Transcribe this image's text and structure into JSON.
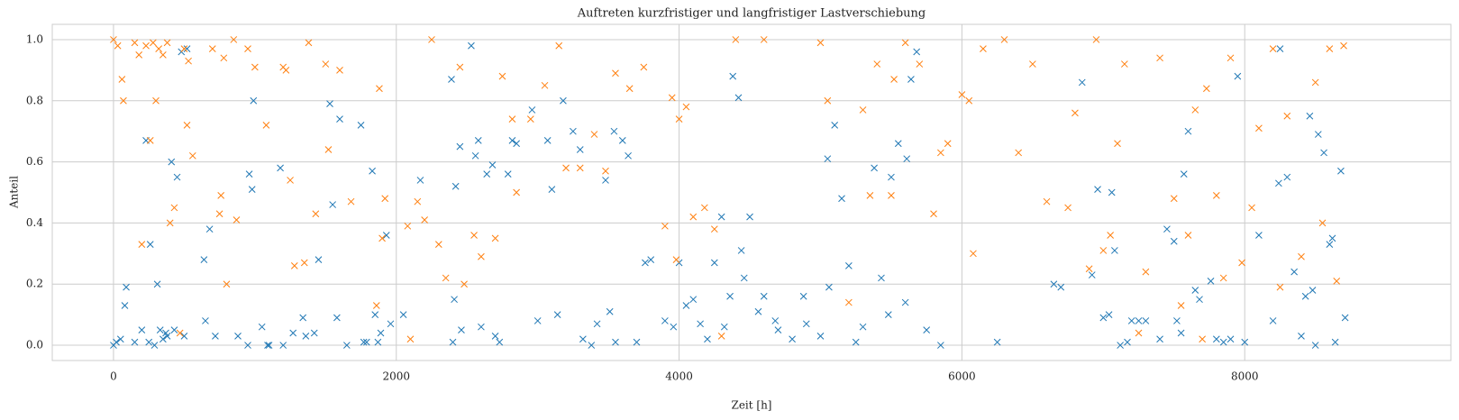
{
  "chart_data": {
    "type": "scatter",
    "title": "Auftreten kurzfristiger und langfristiger Lastverschiebung",
    "x_label": "Zeit [h]",
    "y_label": "Anteil",
    "xlim": [
      -433,
      9458
    ],
    "ylim": [
      -0.05,
      1.05
    ],
    "xticks": [
      0,
      2000,
      4000,
      6000,
      8000
    ],
    "yticks": [
      {
        "value": 0,
        "label": "0.0"
      },
      0.2,
      0.4,
      0.6,
      0.8,
      {
        "value": 1,
        "label": "1.0"
      }
    ],
    "grid": true,
    "marker": "x",
    "series": [
      {
        "color": "#1f77b4",
        "x": [
          0,
          20,
          50,
          80,
          90,
          150,
          200,
          230,
          250,
          260,
          290,
          310,
          330,
          350,
          370,
          380,
          410,
          430,
          450,
          480,
          500,
          520,
          640,
          650,
          680,
          720,
          880,
          950,
          960,
          980,
          990,
          1050,
          1090,
          1100,
          1180,
          1200,
          1270,
          1340,
          1360,
          1420,
          1450,
          1530,
          1550,
          1580,
          1600,
          1650,
          1750,
          1770,
          1790,
          1830,
          1850,
          1870,
          1890,
          1930,
          1960,
          2050,
          2170,
          2390,
          2400,
          2410,
          2420,
          2450,
          2460,
          2530,
          2560,
          2580,
          2600,
          2640,
          2680,
          2700,
          2730,
          2790,
          2820,
          2850,
          2960,
          3000,
          3070,
          3100,
          3140,
          3180,
          3250,
          3300,
          3320,
          3380,
          3420,
          3480,
          3510,
          3540,
          3550,
          3600,
          3640,
          3700,
          3760,
          3800,
          3900,
          3960,
          4000,
          4050,
          4100,
          4150,
          4200,
          4250,
          4300,
          4320,
          4360,
          4380,
          4420,
          4440,
          4460,
          4500,
          4560,
          4600,
          4680,
          4700,
          4800,
          4880,
          4900,
          5000,
          5050,
          5060,
          5100,
          5150,
          5200,
          5250,
          5300,
          5380,
          5430,
          5480,
          5500,
          5550,
          5600,
          5610,
          5640,
          5680,
          5750,
          5850,
          6250,
          6650,
          6700,
          6850,
          6920,
          6960,
          7000,
          7040,
          7060,
          7080,
          7120,
          7170,
          7200,
          7250,
          7300,
          7400,
          7450,
          7500,
          7520,
          7550,
          7570,
          7600,
          7650,
          7680,
          7760,
          7800,
          7850,
          7900,
          7950,
          8000,
          8100,
          8200,
          8240,
          8250,
          8300,
          8350,
          8400,
          8430,
          8460,
          8480,
          8500,
          8520,
          8560,
          8600,
          8620,
          8640,
          8680,
          8710
        ],
        "values": [
          0.0,
          0.01,
          0.02,
          0.13,
          0.19,
          0.01,
          0.05,
          0.67,
          0.01,
          0.33,
          0.0,
          0.2,
          0.05,
          0.02,
          0.04,
          0.03,
          0.6,
          0.05,
          0.55,
          0.96,
          0.03,
          0.97,
          0.28,
          0.08,
          0.38,
          0.03,
          0.03,
          0.0,
          0.56,
          0.51,
          0.8,
          0.06,
          0.0,
          0.0,
          0.58,
          0.0,
          0.04,
          0.09,
          0.03,
          0.04,
          0.28,
          0.79,
          0.46,
          0.09,
          0.74,
          0.0,
          0.72,
          0.01,
          0.01,
          0.57,
          0.1,
          0.01,
          0.04,
          0.36,
          0.07,
          0.1,
          0.54,
          0.87,
          0.01,
          0.15,
          0.52,
          0.65,
          0.05,
          0.98,
          0.62,
          0.67,
          0.06,
          0.56,
          0.59,
          0.03,
          0.01,
          0.56,
          0.67,
          0.66,
          0.77,
          0.08,
          0.67,
          0.51,
          0.1,
          0.8,
          0.7,
          0.64,
          0.02,
          0.0,
          0.07,
          0.54,
          0.11,
          0.7,
          0.01,
          0.67,
          0.62,
          0.01,
          0.27,
          0.28,
          0.08,
          0.06,
          0.27,
          0.13,
          0.15,
          0.07,
          0.02,
          0.27,
          0.42,
          0.06,
          0.16,
          0.88,
          0.81,
          0.31,
          0.22,
          0.42,
          0.11,
          0.16,
          0.08,
          0.05,
          0.02,
          0.16,
          0.07,
          0.03,
          0.61,
          0.19,
          0.72,
          0.48,
          0.26,
          0.01,
          0.06,
          0.58,
          0.22,
          0.1,
          0.55,
          0.66,
          0.14,
          0.61,
          0.87,
          0.96,
          0.05,
          0.0,
          0.01,
          0.2,
          0.19,
          0.86,
          0.23,
          0.51,
          0.09,
          0.1,
          0.5,
          0.31,
          0.0,
          0.01,
          0.08,
          0.08,
          0.08,
          0.02,
          0.38,
          0.34,
          0.08,
          0.04,
          0.56,
          0.7,
          0.18,
          0.15,
          0.21,
          0.02,
          0.01,
          0.02,
          0.88,
          0.01,
          0.36,
          0.08,
          0.53,
          0.97,
          0.55,
          0.24,
          0.03,
          0.16,
          0.75,
          0.18,
          0.0,
          0.69,
          0.63,
          0.33,
          0.35,
          0.01,
          0.57,
          0.09
        ]
      },
      {
        "color": "#ff7f0e",
        "x": [
          0,
          30,
          60,
          70,
          150,
          180,
          200,
          230,
          260,
          280,
          300,
          320,
          350,
          380,
          400,
          430,
          470,
          500,
          520,
          530,
          560,
          700,
          750,
          760,
          780,
          800,
          850,
          870,
          950,
          1000,
          1080,
          1200,
          1220,
          1250,
          1280,
          1350,
          1380,
          1430,
          1500,
          1520,
          1600,
          1680,
          1860,
          1880,
          1900,
          1920,
          2080,
          2100,
          2150,
          2200,
          2250,
          2300,
          2350,
          2450,
          2480,
          2550,
          2600,
          2700,
          2750,
          2820,
          2850,
          2950,
          3050,
          3150,
          3200,
          3300,
          3400,
          3480,
          3550,
          3650,
          3750,
          3900,
          3950,
          3980,
          4000,
          4050,
          4100,
          4180,
          4250,
          4300,
          4400,
          4600,
          5000,
          5050,
          5200,
          5300,
          5350,
          5400,
          5500,
          5520,
          5600,
          5700,
          5800,
          5850,
          5900,
          6000,
          6050,
          6080,
          6150,
          6300,
          6400,
          6500,
          6600,
          6750,
          6800,
          6900,
          6950,
          7000,
          7050,
          7100,
          7150,
          7250,
          7300,
          7400,
          7500,
          7550,
          7600,
          7650,
          7700,
          7730,
          7800,
          7850,
          7900,
          7980,
          8050,
          8100,
          8200,
          8250,
          8300,
          8400,
          8500,
          8550,
          8600,
          8650,
          8700
        ],
        "values": [
          1.0,
          0.98,
          0.87,
          0.8,
          0.99,
          0.95,
          0.33,
          0.98,
          0.67,
          0.99,
          0.8,
          0.97,
          0.95,
          0.99,
          0.4,
          0.45,
          0.04,
          0.97,
          0.72,
          0.93,
          0.62,
          0.97,
          0.43,
          0.49,
          0.94,
          0.2,
          1.0,
          0.41,
          0.97,
          0.91,
          0.72,
          0.91,
          0.9,
          0.54,
          0.26,
          0.27,
          0.99,
          0.43,
          0.92,
          0.64,
          0.9,
          0.47,
          0.13,
          0.84,
          0.35,
          0.48,
          0.39,
          0.02,
          0.47,
          0.41,
          1.0,
          0.33,
          0.22,
          0.91,
          0.2,
          0.36,
          0.29,
          0.35,
          0.88,
          0.74,
          0.5,
          0.74,
          0.85,
          0.98,
          0.58,
          0.58,
          0.69,
          0.57,
          0.89,
          0.84,
          0.91,
          0.39,
          0.81,
          0.28,
          0.74,
          0.78,
          0.42,
          0.45,
          0.38,
          0.03,
          1.0,
          1.0,
          0.99,
          0.8,
          0.14,
          0.77,
          0.49,
          0.92,
          0.49,
          0.87,
          0.99,
          0.92,
          0.43,
          0.63,
          0.66,
          0.82,
          0.8,
          0.3,
          0.97,
          1.0,
          0.63,
          0.92,
          0.47,
          0.45,
          0.76,
          0.25,
          1.0,
          0.31,
          0.36,
          0.66,
          0.92,
          0.04,
          0.24,
          0.94,
          0.48,
          0.13,
          0.36,
          0.77,
          0.02,
          0.84,
          0.49,
          0.22,
          0.94,
          0.27,
          0.45,
          0.71,
          0.97,
          0.19,
          0.75,
          0.29,
          0.86,
          0.4,
          0.97,
          0.21,
          0.98
        ]
      }
    ]
  }
}
